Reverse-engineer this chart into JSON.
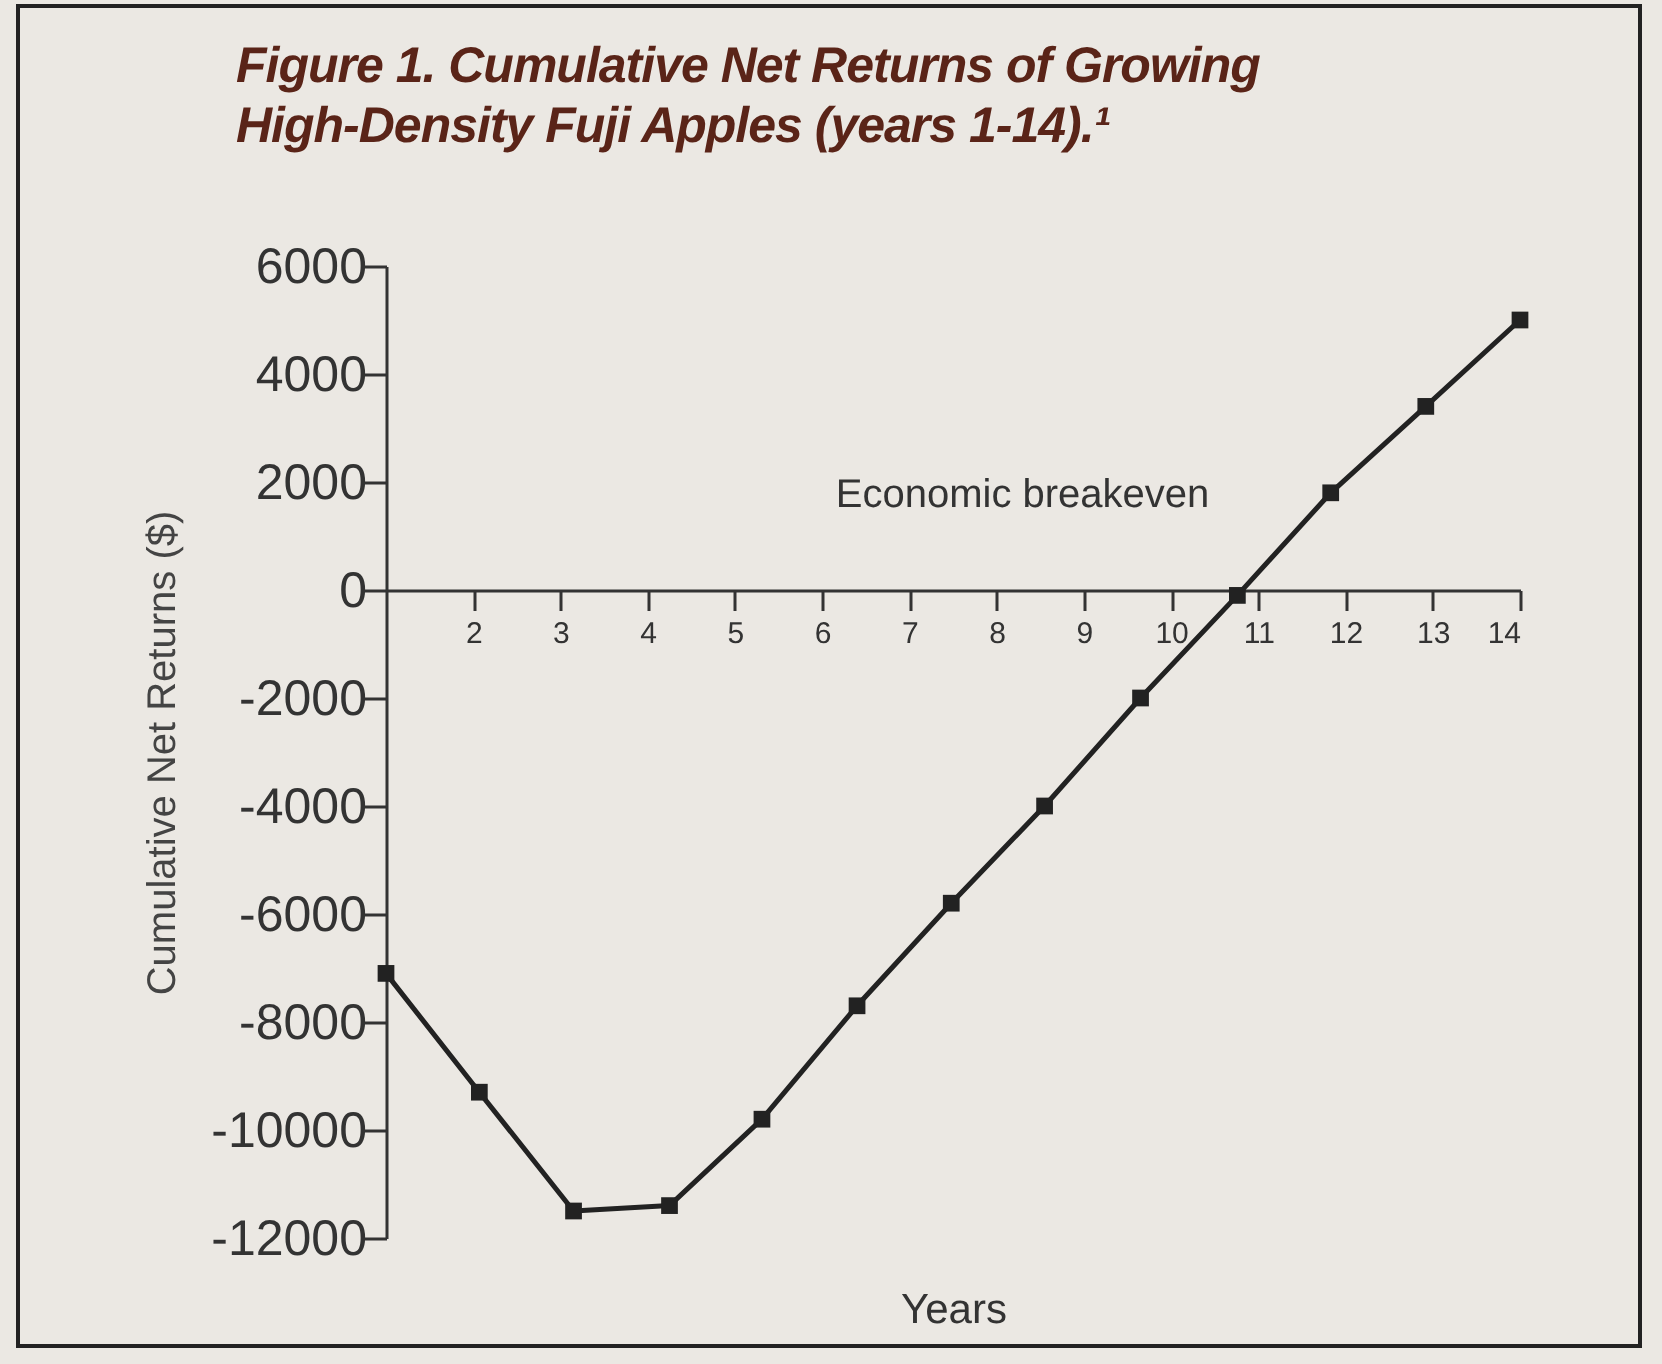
{
  "chart_data": {
    "type": "line",
    "title": "Figure 1.  Cumulative Net Returns of Growing High-Density Fuji Apples (years 1-14).¹",
    "xlabel": "Years",
    "ylabel": "Cumulative Net Returns ($)",
    "x": [
      1,
      2.07,
      3.15,
      4.25,
      5.31,
      6.4,
      7.48,
      8.55,
      9.65,
      10.76,
      11.83,
      12.92,
      14
    ],
    "series": [
      {
        "color": "#222222",
        "values": [
          -7100,
          -9300,
          -11500,
          -11400,
          -9800,
          -7700,
          -5800,
          -4000,
          -2000,
          -100,
          1800,
          3400,
          5000
        ]
      }
    ],
    "xlim": [
      1,
      14
    ],
    "xticks": [
      2,
      3,
      4,
      5,
      6,
      7,
      8,
      9,
      10,
      11,
      12,
      13,
      14
    ],
    "ylim": [
      -12000,
      6000
    ],
    "yticks": [
      -12000,
      -10000,
      -8000,
      -6000,
      -4000,
      -2000,
      0,
      2000,
      4000,
      6000
    ],
    "annotations": [
      {
        "text": "Economic breakeven",
        "x": 10.76,
        "y": -100
      }
    ],
    "grid": false,
    "marker": "square",
    "line_style": "solid"
  }
}
